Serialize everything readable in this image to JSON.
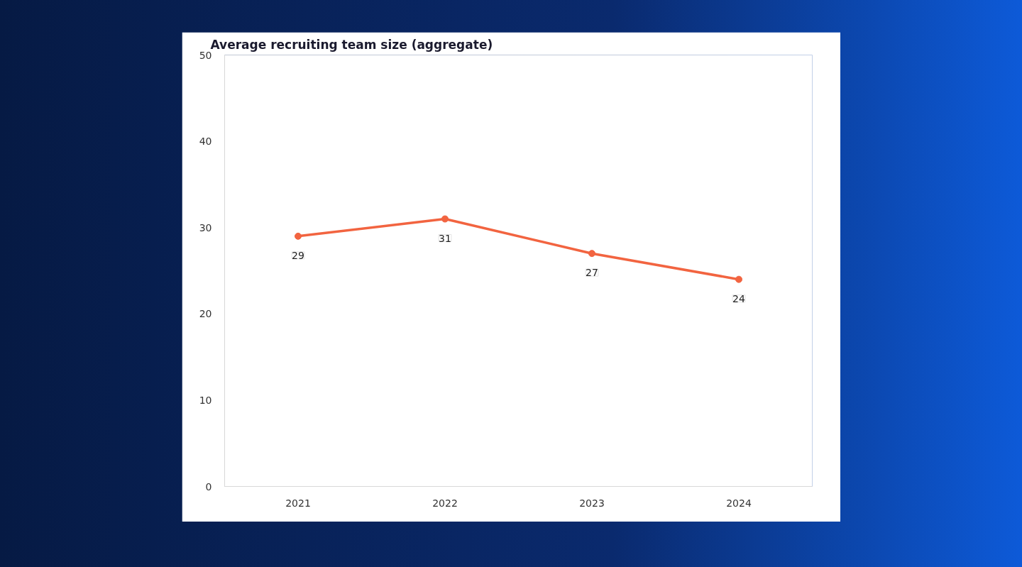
{
  "chart_data": {
    "type": "line",
    "title": "Average recruiting team size (aggregate)",
    "categories": [
      "2021",
      "2022",
      "2023",
      "2024"
    ],
    "series": [
      {
        "color": "#f26440",
        "values": [
          29,
          31,
          27,
          24
        ]
      }
    ],
    "ylim": [
      0,
      50
    ],
    "yticks": [
      0,
      10,
      20,
      30,
      40,
      50
    ],
    "data_labels": true,
    "marker": "circle",
    "line_style": "solid"
  }
}
